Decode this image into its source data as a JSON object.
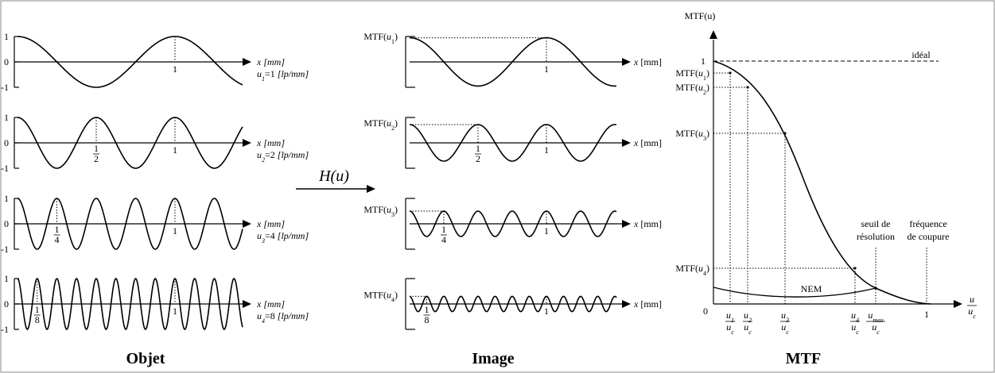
{
  "transfer": "H(u)",
  "objet": {
    "title": "Objet",
    "y_labels": [
      "1",
      "0",
      "-1"
    ],
    "axis_label": {
      "var": "x",
      "unit": "[mm]"
    },
    "plots": [
      {
        "ticks": [
          {
            "text": "1"
          }
        ],
        "frequency": {
          "var": "u",
          "sub": "1",
          "value": "=1",
          "unit": "[lp/mm]"
        }
      },
      {
        "ticks": [
          {
            "num": "1",
            "den": "2"
          },
          {
            "text": "1"
          }
        ],
        "frequency": {
          "var": "u",
          "sub": "2",
          "value": "=2",
          "unit": "[lp/mm]"
        }
      },
      {
        "ticks": [
          {
            "num": "1",
            "den": "4"
          },
          {
            "text": "1"
          }
        ],
        "frequency": {
          "var": "u",
          "sub": "3",
          "value": "=4",
          "unit": "[lp/mm]"
        }
      },
      {
        "ticks": [
          {
            "num": "1",
            "den": "8"
          },
          {
            "text": "1"
          }
        ],
        "frequency": {
          "var": "u",
          "sub": "4",
          "value": "=8",
          "unit": "[lp/mm]"
        }
      }
    ]
  },
  "image": {
    "title": "Image",
    "axis_label": {
      "var": "x",
      "unit": "[mm]"
    },
    "plots": [
      {
        "label": {
          "prefix": "MTF(",
          "var": "u",
          "sub": "1",
          "suffix": ")"
        },
        "ticks": [
          {
            "text": "1"
          }
        ]
      },
      {
        "label": {
          "prefix": "MTF(",
          "var": "u",
          "sub": "2",
          "suffix": ")"
        },
        "ticks": [
          {
            "num": "1",
            "den": "2"
          },
          {
            "text": "1"
          }
        ]
      },
      {
        "label": {
          "prefix": "MTF(",
          "var": "u",
          "sub": "3",
          "suffix": ")"
        },
        "ticks": [
          {
            "num": "1",
            "den": "4"
          },
          {
            "text": "1"
          }
        ]
      },
      {
        "label": {
          "prefix": "MTF(",
          "var": "u",
          "sub": "4",
          "suffix": ")"
        },
        "ticks": [
          {
            "num": "1",
            "den": "8"
          },
          {
            "text": "1"
          }
        ]
      }
    ]
  },
  "mtf": {
    "title": "MTF",
    "y_axis_label": "MTF(u)",
    "y_one": "1",
    "ideal": "idéal",
    "origin": "0",
    "x_one": "1",
    "nem": "NEM",
    "seuil": [
      "seuil de",
      "résolution"
    ],
    "coupure": [
      "fréquence",
      "de coupure"
    ],
    "levels": [
      {
        "prefix": "MTF(",
        "var": "u",
        "sub": "1",
        "suffix": ")"
      },
      {
        "prefix": "MTF(",
        "var": "u",
        "sub": "2",
        "suffix": ")"
      },
      {
        "prefix": "MTF(",
        "var": "u",
        "sub": "3",
        "suffix": ")"
      },
      {
        "prefix": "MTF(",
        "var": "u",
        "sub": "4",
        "suffix": ")"
      }
    ],
    "x_fracs": [
      {
        "num": {
          "var": "u",
          "sub": "1"
        },
        "den": {
          "var": "u",
          "sub": "c"
        }
      },
      {
        "num": {
          "var": "u",
          "sub": "2"
        },
        "den": {
          "var": "u",
          "sub": "c"
        }
      },
      {
        "num": {
          "var": "u",
          "sub": "3"
        },
        "den": {
          "var": "u",
          "sub": "c"
        }
      },
      {
        "num": {
          "var": "u",
          "sub": "4"
        },
        "den": {
          "var": "u",
          "sub": "c"
        }
      },
      {
        "num": {
          "var": "u",
          "sub": "max"
        },
        "den": {
          "var": "u",
          "sub": "c"
        }
      }
    ],
    "x_axis_label": {
      "num": {
        "var": "u"
      },
      "den": {
        "var": "u",
        "sub": "c"
      }
    }
  }
}
